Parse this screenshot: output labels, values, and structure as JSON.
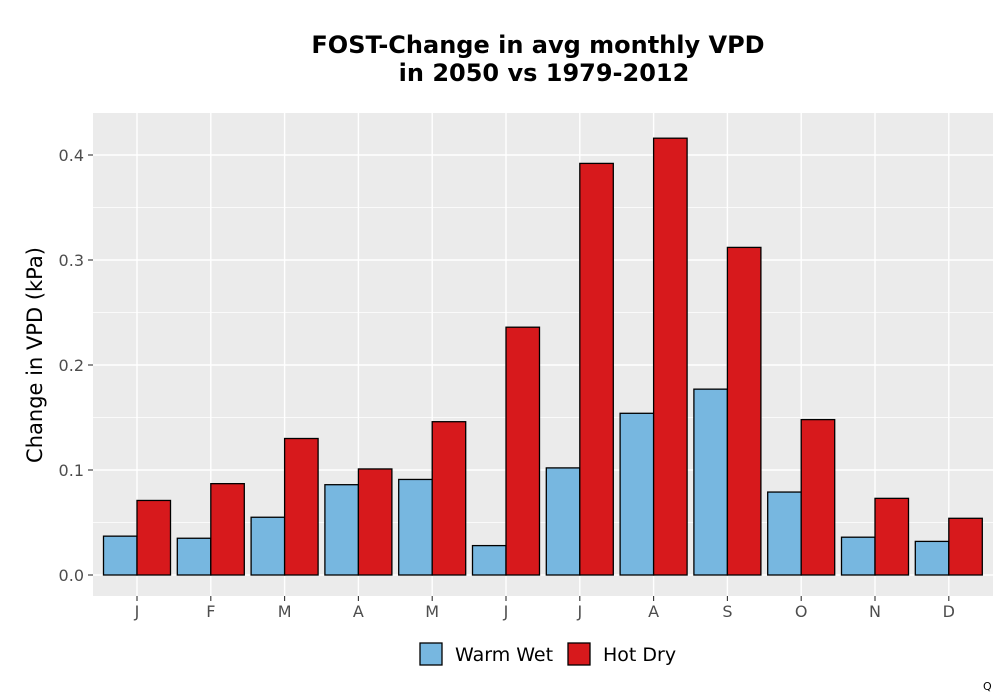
{
  "chart_data": {
    "type": "bar",
    "title_line1": "FOST-Change in avg monthly VPD",
    "title_line2": "in 2050 vs 1979-2012",
    "xlabel": "",
    "ylabel": "Change in VPD (kPa)",
    "categories": [
      "J",
      "F",
      "M",
      "A",
      "M",
      "J",
      "J",
      "A",
      "S",
      "O",
      "N",
      "D"
    ],
    "series": [
      {
        "name": "Warm Wet",
        "color": "#77B7E0",
        "values": [
          0.037,
          0.035,
          0.055,
          0.086,
          0.091,
          0.028,
          0.102,
          0.154,
          0.177,
          0.079,
          0.036,
          0.032
        ]
      },
      {
        "name": "Hot Dry",
        "color": "#D7191C",
        "values": [
          0.071,
          0.087,
          0.13,
          0.101,
          0.146,
          0.236,
          0.392,
          0.416,
          0.312,
          0.148,
          0.073,
          0.054
        ]
      }
    ],
    "ylim": [
      -0.02,
      0.44
    ],
    "yticks": [
      "0.0",
      "0.1",
      "0.2",
      "0.3",
      "0.4"
    ],
    "ytick_values": [
      0.0,
      0.1,
      0.2,
      0.3,
      0.4
    ],
    "grid": true,
    "legend_position": "bottom",
    "panel_color": "#EBEBEB"
  },
  "footer_mark": "Q"
}
